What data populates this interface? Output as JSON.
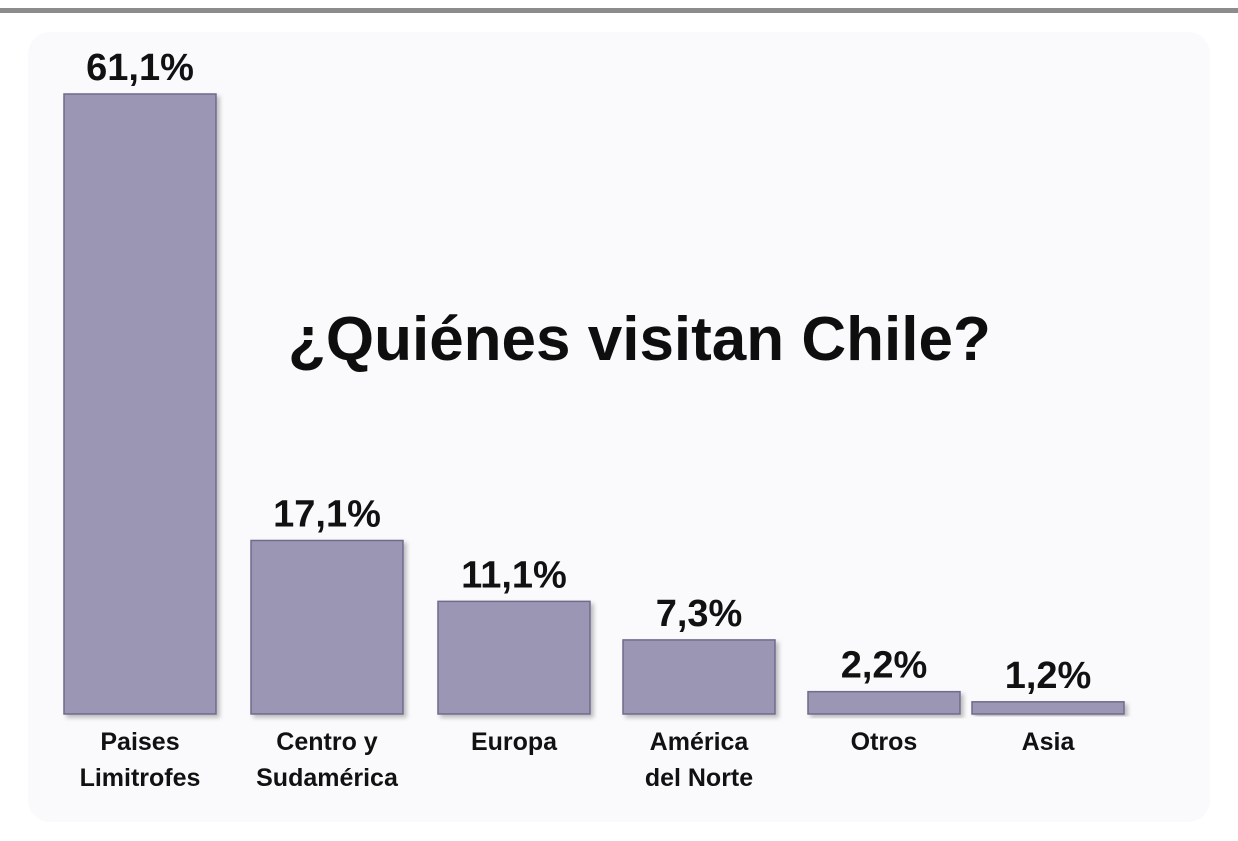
{
  "chart_data": {
    "type": "bar",
    "title": "¿Quiénes visitan Chile?",
    "categories": [
      [
        "Paises",
        "Limitrofes"
      ],
      [
        "Centro y",
        "Sudamérica"
      ],
      [
        "Europa"
      ],
      [
        "América",
        "del Norte"
      ],
      [
        "Otros"
      ],
      [
        "Asia"
      ]
    ],
    "values": [
      61.1,
      17.1,
      11.1,
      7.3,
      2.2,
      1.2
    ],
    "value_labels": [
      "61,1%",
      "17,1%",
      "11,1%",
      "7,3%",
      "2,2%",
      "1,2%"
    ],
    "unit": "%",
    "ylim": [
      0,
      61.1
    ],
    "grid": false,
    "legend": "none",
    "bar_color": "#9a96b4",
    "bar_edge_color": "#6f6b8c"
  }
}
